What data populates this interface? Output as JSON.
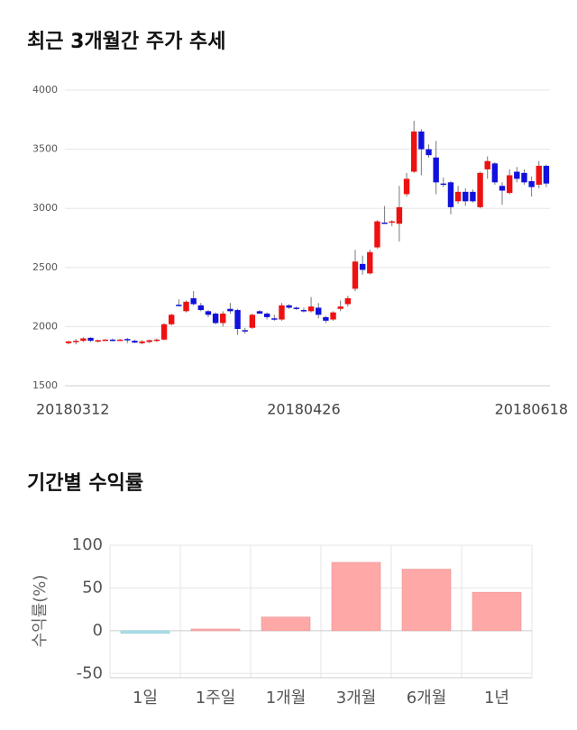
{
  "chart_data": [
    {
      "type": "candlestick",
      "title": "최근 3개월간 주가 추세",
      "categories": [
        "20180312",
        null,
        null,
        null,
        null,
        null,
        null,
        null,
        null,
        null,
        null,
        null,
        null,
        null,
        null,
        null,
        null,
        null,
        null,
        null,
        null,
        null,
        null,
        null,
        null,
        null,
        null,
        null,
        null,
        null,
        null,
        null,
        "20180426",
        null,
        null,
        null,
        null,
        null,
        null,
        null,
        null,
        null,
        null,
        null,
        null,
        null,
        null,
        null,
        null,
        null,
        null,
        null,
        null,
        null,
        null,
        null,
        null,
        null,
        null,
        null,
        null,
        null,
        null,
        null,
        null,
        "20180618"
      ],
      "open": [
        1860,
        1875,
        1880,
        1905,
        1875,
        1885,
        1890,
        1888,
        1895,
        1880,
        1860,
        1870,
        1880,
        1890,
        2020,
        2185,
        2130,
        2240,
        2180,
        2130,
        2110,
        2030,
        2150,
        2140,
        1970,
        1990,
        2130,
        2110,
        2070,
        2060,
        2180,
        2160,
        2140,
        2130,
        2160,
        2080,
        2060,
        2150,
        2190,
        2320,
        2530,
        2450,
        2670,
        2880,
        2880,
        2870,
        3120,
        3310,
        3650,
        3500,
        3430,
        3210,
        3220,
        3060,
        3140,
        3140,
        3010,
        3330,
        3380,
        3190,
        3130,
        3310,
        3300,
        3230,
        3200,
        3360
      ],
      "high": [
        1880,
        1895,
        1910,
        1910,
        1890,
        1895,
        1900,
        1895,
        1905,
        1890,
        1885,
        1890,
        1900,
        2030,
        2110,
        2230,
        2220,
        2300,
        2200,
        2140,
        2120,
        2130,
        2200,
        2150,
        1990,
        2110,
        2140,
        2120,
        2100,
        2200,
        2190,
        2170,
        2160,
        2250,
        2200,
        2090,
        2130,
        2220,
        2260,
        2650,
        2600,
        2650,
        2900,
        3020,
        2900,
        3190,
        3300,
        3740,
        3670,
        3540,
        3570,
        3260,
        3230,
        3190,
        3170,
        3160,
        3310,
        3440,
        3390,
        3220,
        3330,
        3350,
        3330,
        3270,
        3400,
        3370
      ],
      "low": [
        1850,
        1850,
        1870,
        1870,
        1865,
        1880,
        1875,
        1880,
        1860,
        1860,
        1850,
        1860,
        1870,
        1885,
        2010,
        2170,
        2120,
        2180,
        2130,
        2080,
        2020,
        2000,
        2110,
        1930,
        1940,
        1980,
        2110,
        2060,
        2050,
        2050,
        2150,
        2140,
        2120,
        2120,
        2070,
        2030,
        2050,
        2130,
        2170,
        2300,
        2440,
        2440,
        2660,
        2870,
        2850,
        2720,
        3100,
        3300,
        3280,
        3430,
        3120,
        3180,
        2950,
        3040,
        3020,
        3050,
        3000,
        3250,
        3200,
        3030,
        3120,
        3220,
        3200,
        3100,
        3170,
        3180
      ],
      "close": [
        1875,
        1880,
        1900,
        1880,
        1885,
        1890,
        1885,
        1890,
        1885,
        1865,
        1875,
        1885,
        1890,
        2020,
        2100,
        2175,
        2210,
        2190,
        2140,
        2100,
        2030,
        2110,
        2130,
        1980,
        1960,
        2100,
        2110,
        2080,
        2060,
        2180,
        2160,
        2150,
        2130,
        2170,
        2100,
        2050,
        2120,
        2170,
        2240,
        2550,
        2480,
        2630,
        2890,
        2870,
        2890,
        3010,
        3250,
        3650,
        3500,
        3450,
        3220,
        3200,
        3010,
        3140,
        3060,
        3060,
        3300,
        3400,
        3220,
        3150,
        3280,
        3250,
        3220,
        3180,
        3360,
        3210
      ],
      "up_color": "#ee1111",
      "down_color": "#1111dd",
      "ylim": [
        1500,
        4000
      ],
      "yticks": [
        1500,
        2000,
        2500,
        3000,
        3500,
        4000
      ],
      "grid": true
    },
    {
      "type": "bar",
      "title": "기간별 수익률",
      "y_label": "수익률(%)",
      "categories": [
        "1일",
        "1주일",
        "1개월",
        "3개월",
        "6개월",
        "1년"
      ],
      "values": [
        -3,
        2,
        16,
        80,
        72,
        45
      ],
      "colors": [
        "#a8e0ea",
        "#ffa8a8",
        "#ffa8a8",
        "#ffa8a8",
        "#ffa8a8",
        "#ffa8a8"
      ],
      "ylim": [
        -55,
        100
      ],
      "yticks": [
        -50,
        0,
        50,
        100
      ],
      "grid": true
    }
  ]
}
